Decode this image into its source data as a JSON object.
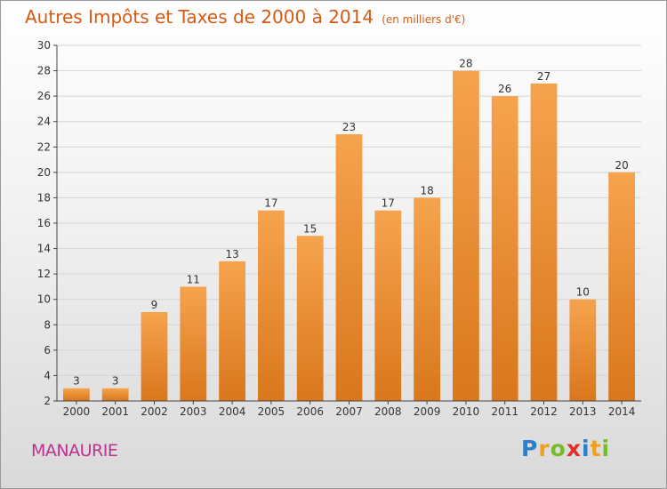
{
  "title": "Autres Impôts et Taxes de 2000 à 2014",
  "unit_note": "(en milliers d'€)",
  "commune": "MANAURIE",
  "logo": {
    "letters": [
      "P",
      "r",
      "o",
      "x",
      "i",
      "t",
      "i"
    ],
    "colors": [
      "#2d7fc9",
      "#f0a020",
      "#7ab929",
      "#e0302d",
      "#2d7fc9",
      "#f0a020",
      "#7ab929"
    ]
  },
  "colors": {
    "title": "#d85a12",
    "commune": "#c0308f",
    "bar_light": "#f6a34e",
    "bar_dark": "#dc7a1f",
    "grid": "#d7d7d7"
  },
  "chart_data": {
    "type": "bar",
    "categories": [
      "2000",
      "2001",
      "2002",
      "2003",
      "2004",
      "2005",
      "2006",
      "2007",
      "2008",
      "2009",
      "2010",
      "2011",
      "2012",
      "2013",
      "2014"
    ],
    "values": [
      3,
      3,
      9,
      11,
      13,
      17,
      15,
      23,
      17,
      18,
      28,
      26,
      27,
      10,
      20
    ],
    "ylim": [
      2,
      30
    ],
    "yticks": [
      2,
      4,
      6,
      8,
      10,
      12,
      14,
      16,
      18,
      20,
      22,
      24,
      26,
      28,
      30
    ],
    "grid": true
  }
}
